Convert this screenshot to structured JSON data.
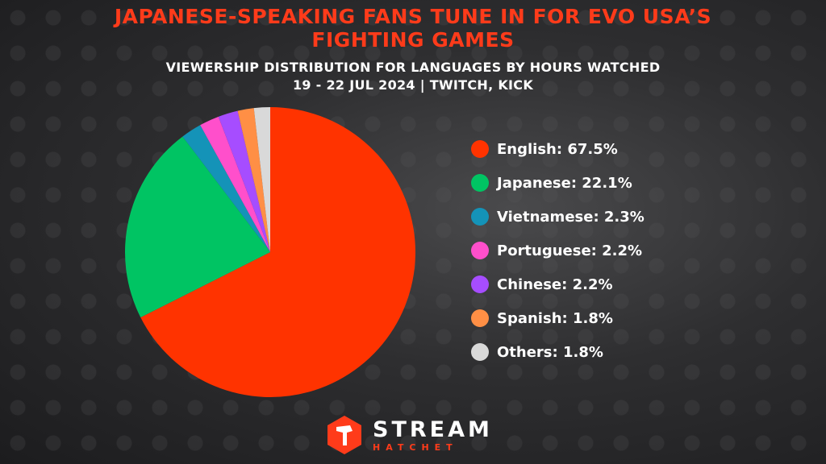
{
  "title_line1": "JAPANESE-SPEAKING FANS TUNE IN FOR EVO USA’S",
  "title_line2": "FIGHTING GAMES",
  "subtitle_line1": "VIEWERSHIP DISTRIBUTION FOR LANGUAGES BY HOURS WATCHED",
  "subtitle_line2": "19 - 22 JUL 2024 | TWITCH, KICK",
  "brand": {
    "main": "STREAM",
    "sub": "HATCHET",
    "color": "#ff3b1a"
  },
  "chart_data": {
    "type": "pie",
    "title": "JAPANESE-SPEAKING FANS TUNE IN FOR EVO USA’S FIGHTING GAMES",
    "subtitle": "VIEWERSHIP DISTRIBUTION FOR LANGUAGES BY HOURS WATCHED 19 - 22 JUL 2024 | TWITCH, KICK",
    "legend_position": "right",
    "slices": [
      {
        "label": "English",
        "value": 67.5,
        "legend_text": "English: 67.5%",
        "color": "#ff3300"
      },
      {
        "label": "Japanese",
        "value": 22.1,
        "legend_text": "Japanese: 22.1%",
        "color": "#00c463"
      },
      {
        "label": "Vietnamese",
        "value": 2.3,
        "legend_text": "Vietnamese: 2.3%",
        "color": "#1493b8"
      },
      {
        "label": "Portuguese",
        "value": 2.2,
        "legend_text": "Portuguese: 2.2%",
        "color": "#ff4fcb"
      },
      {
        "label": "Chinese",
        "value": 2.2,
        "legend_text": "Chinese: 2.2%",
        "color": "#a64dff"
      },
      {
        "label": "Spanish",
        "value": 1.8,
        "legend_text": "Spanish: 1.8%",
        "color": "#ff8f45"
      },
      {
        "label": "Others",
        "value": 1.8,
        "legend_text": "Others: 1.8%",
        "color": "#d9d9d9"
      }
    ]
  }
}
